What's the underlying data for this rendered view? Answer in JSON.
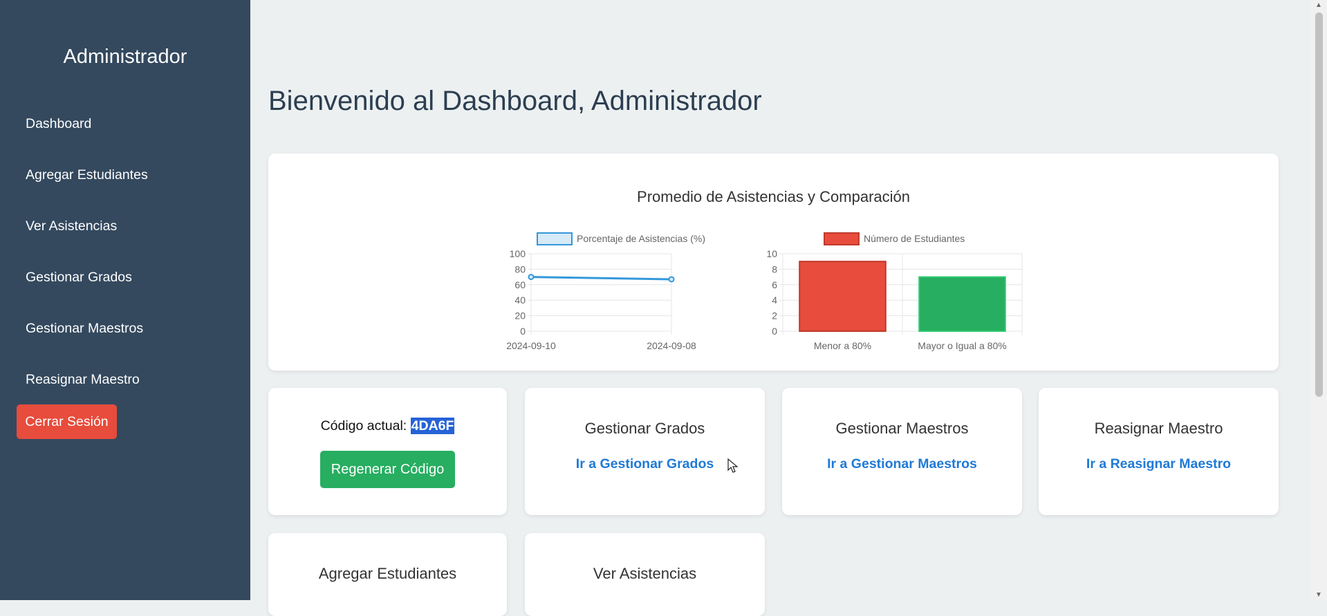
{
  "sidebar": {
    "title": "Administrador",
    "items": [
      {
        "label": "Dashboard"
      },
      {
        "label": "Agregar Estudiantes"
      },
      {
        "label": "Ver Asistencias"
      },
      {
        "label": "Gestionar Grados"
      },
      {
        "label": "Gestionar Maestros"
      },
      {
        "label": "Reasignar Maestro"
      }
    ],
    "logout_label": "Cerrar Sesión"
  },
  "main": {
    "page_title": "Bienvenido al Dashboard, Administrador",
    "chart_card_title": "Promedio de Asistencias y Comparación",
    "code_card": {
      "label": "Código actual:",
      "code": "4DA6F",
      "button_label": "Regenerar Código"
    },
    "cards": [
      {
        "title": "Gestionar Grados",
        "link": "Ir a Gestionar Grados"
      },
      {
        "title": "Gestionar Maestros",
        "link": "Ir a Gestionar Maestros"
      },
      {
        "title": "Reasignar Maestro",
        "link": "Ir a Reasignar Maestro"
      },
      {
        "title": "Agregar Estudiantes"
      },
      {
        "title": "Ver Asistencias"
      }
    ]
  },
  "colors": {
    "sidebar_bg": "#34495e",
    "logout": "#e74c3c",
    "regen": "#27ae60",
    "link": "#1f7ad6",
    "line": "#3498db",
    "bar_red": "#e74c3c",
    "bar_green": "#27ae60"
  },
  "chart_data": [
    {
      "type": "line",
      "x": [
        "2024-09-10",
        "2024-09-08"
      ],
      "series": [
        {
          "name": "Porcentaje de Asistencias (%)",
          "values": [
            70,
            67
          ]
        }
      ],
      "ylim": [
        0,
        100
      ],
      "yticks": [
        0,
        20,
        40,
        60,
        80,
        100
      ],
      "grid": true,
      "legend": "top"
    },
    {
      "type": "bar",
      "categories": [
        "Menor a 80%",
        "Mayor o Igual a 80%"
      ],
      "series": [
        {
          "name": "Número de Estudiantes",
          "values": [
            9,
            7
          ]
        }
      ],
      "ylim": [
        0,
        10
      ],
      "yticks": [
        0,
        2,
        4,
        6,
        8,
        10
      ],
      "grid": true,
      "legend": "top"
    }
  ]
}
